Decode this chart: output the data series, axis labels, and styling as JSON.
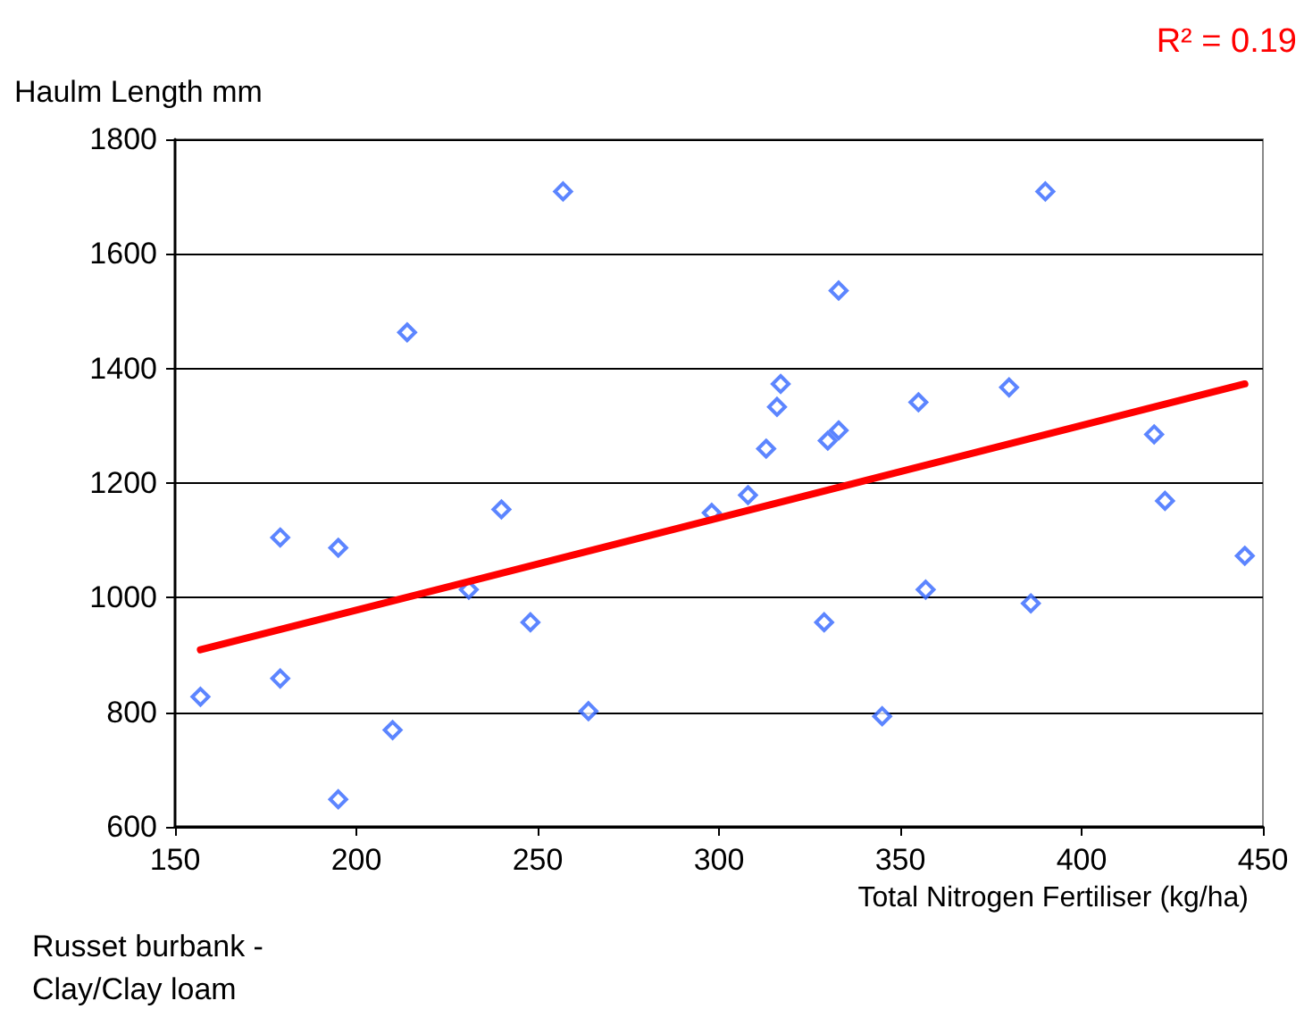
{
  "chart_data": {
    "type": "scatter",
    "ylabel": "Haulm Length mm",
    "xlabel": "Total Nitrogen Fertiliser (kg/ha)",
    "annotations": [
      "R² = 0.19",
      "Russet burbank - Clay/Clay loam"
    ],
    "xlim": [
      150,
      450
    ],
    "xticks": [
      150,
      200,
      250,
      300,
      350,
      400,
      450
    ],
    "ylim": [
      600,
      1800
    ],
    "yticks": [
      600,
      800,
      1000,
      1200,
      1400,
      1600,
      1800
    ],
    "grid": "y",
    "marker": "diamond",
    "series": [
      {
        "color": "#3366ff",
        "x": [
          157,
          179,
          179,
          195,
          195,
          210,
          214,
          231,
          240,
          248,
          257,
          264,
          298,
          308,
          313,
          316,
          317,
          329,
          330,
          333,
          333,
          345,
          355,
          357,
          380,
          386,
          390,
          420,
          423,
          445
        ],
        "values": [
          827,
          1105,
          859,
          1087,
          648,
          769,
          1463,
          1014,
          1154,
          957,
          1709,
          802,
          1148,
          1179,
          1260,
          1333,
          1373,
          957,
          1274,
          1292,
          1536,
          793,
          1341,
          1014,
          1367,
          990,
          1709,
          1285,
          1169,
          1073
        ]
      },
      {
        "type": "line",
        "marker": "none",
        "color": "#ff0000",
        "x": [
          157,
          445
        ],
        "values": [
          909,
          1373
        ]
      }
    ]
  }
}
